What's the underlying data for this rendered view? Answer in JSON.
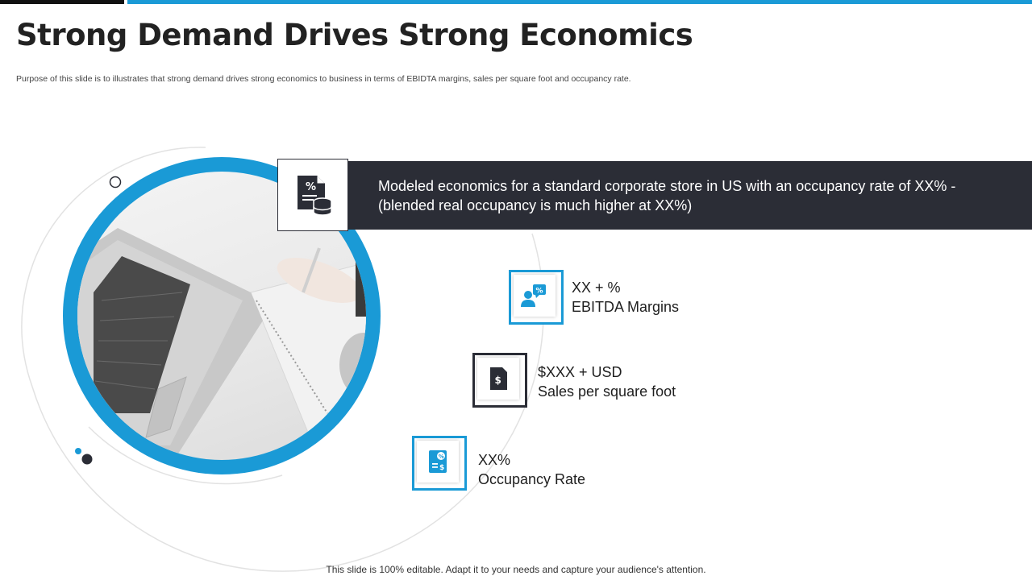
{
  "slide": {
    "title": "Strong Demand Drives Strong Economics",
    "subtitle": "Purpose of this slide is to illustrates that strong demand drives strong economics to business in terms of EBIDTA margins, sales per square foot and occupancy rate.",
    "footer": "This slide is 100% editable. Adapt it to your needs and capture your audience's attention."
  },
  "banner": {
    "line1": "Modeled economics for a standard corporate store in US with an occupancy rate of XX% -",
    "line2": "(blended real occupancy is much higher at XX%)",
    "icon": "percent-document-coins-icon"
  },
  "metrics": [
    {
      "value": "XX + %",
      "label": "EBITDA Margins",
      "icon": "person-percent-chat-icon",
      "border_color": "#1a9ad6"
    },
    {
      "value": "$XXX + USD",
      "label": "Sales per square foot",
      "icon": "dollar-document-icon",
      "border_color": "#2b2d36"
    },
    {
      "value": "XX%",
      "label": "Occupancy Rate",
      "icon": "percent-dollar-receipt-icon",
      "border_color": "#1a9ad6"
    }
  ],
  "colors": {
    "accent": "#1a9ad6",
    "dark": "#2b2d36"
  }
}
